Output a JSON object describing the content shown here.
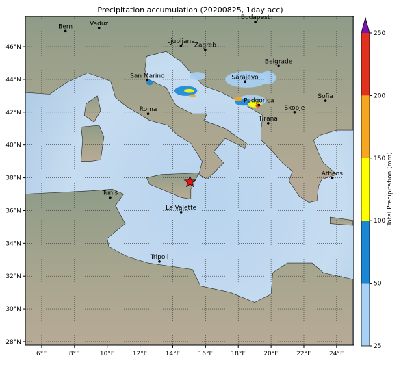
{
  "title": "Precipitation accumulation (20200825, 1day acc)",
  "x_ticks": [
    "6°E",
    "8°E",
    "10°E",
    "12°E",
    "14°E",
    "16°E",
    "18°E",
    "20°E",
    "22°E",
    "24°E"
  ],
  "y_ticks": [
    "28°N",
    "30°N",
    "32°N",
    "34°N",
    "36°N",
    "38°N",
    "40°N",
    "42°N",
    "44°N",
    "46°N"
  ],
  "cities": [
    "Bern",
    "Vaduz",
    "Budapest",
    "Ljubljana",
    "Zagreb",
    "Belgrade",
    "San Marino",
    "Sarajevo",
    "Sofia",
    "Podgorica",
    "Skopje",
    "Roma",
    "Tirana",
    "Athens",
    "Tunis",
    "La Valette",
    "Tripoli"
  ],
  "colorbar": {
    "label": "Total Precipitation (mm)",
    "ticks": [
      25,
      50,
      100,
      150,
      200,
      250
    ],
    "colors": [
      "#a9d0f5",
      "#1a86d4",
      "#ffff00",
      "#f5a623",
      "#e0301e"
    ],
    "extend_color": "#7a12b0"
  }
}
